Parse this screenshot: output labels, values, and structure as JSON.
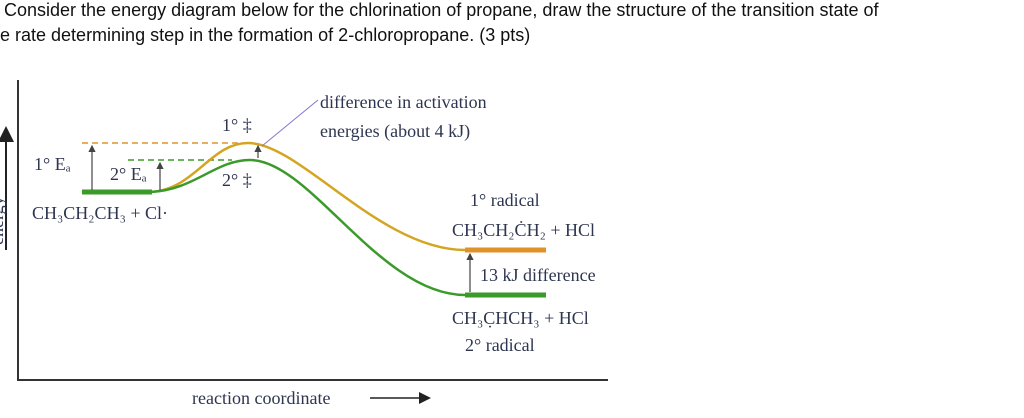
{
  "question": {
    "lines": [
      "Consider the energy diagram below for the chlorination of propane, draw the structure of the transition state of",
      "e rate determining step in the formation of 2-chloropropane. (3 pts)"
    ]
  },
  "diagram": {
    "y_axis_label": "energy",
    "x_axis_label": "reaction coordinate",
    "annotation": [
      "difference in activation",
      "energies (about 4 kJ)"
    ],
    "ts_primary": "1° ‡",
    "ts_secondary": "2° ‡",
    "ea_primary": "1° Eₐ",
    "ea_secondary": "2° Eₐ",
    "reactants": "CH₃CH₂CH₃ + Cl·",
    "primary_label": "1° radical",
    "primary_products": "CH₃CH₂ĊH₂ + HCl",
    "difference": "13 kJ difference",
    "secondary_products": "CH₃C̣HCH₃ + HCl",
    "secondary_label": "2° radical"
  }
}
